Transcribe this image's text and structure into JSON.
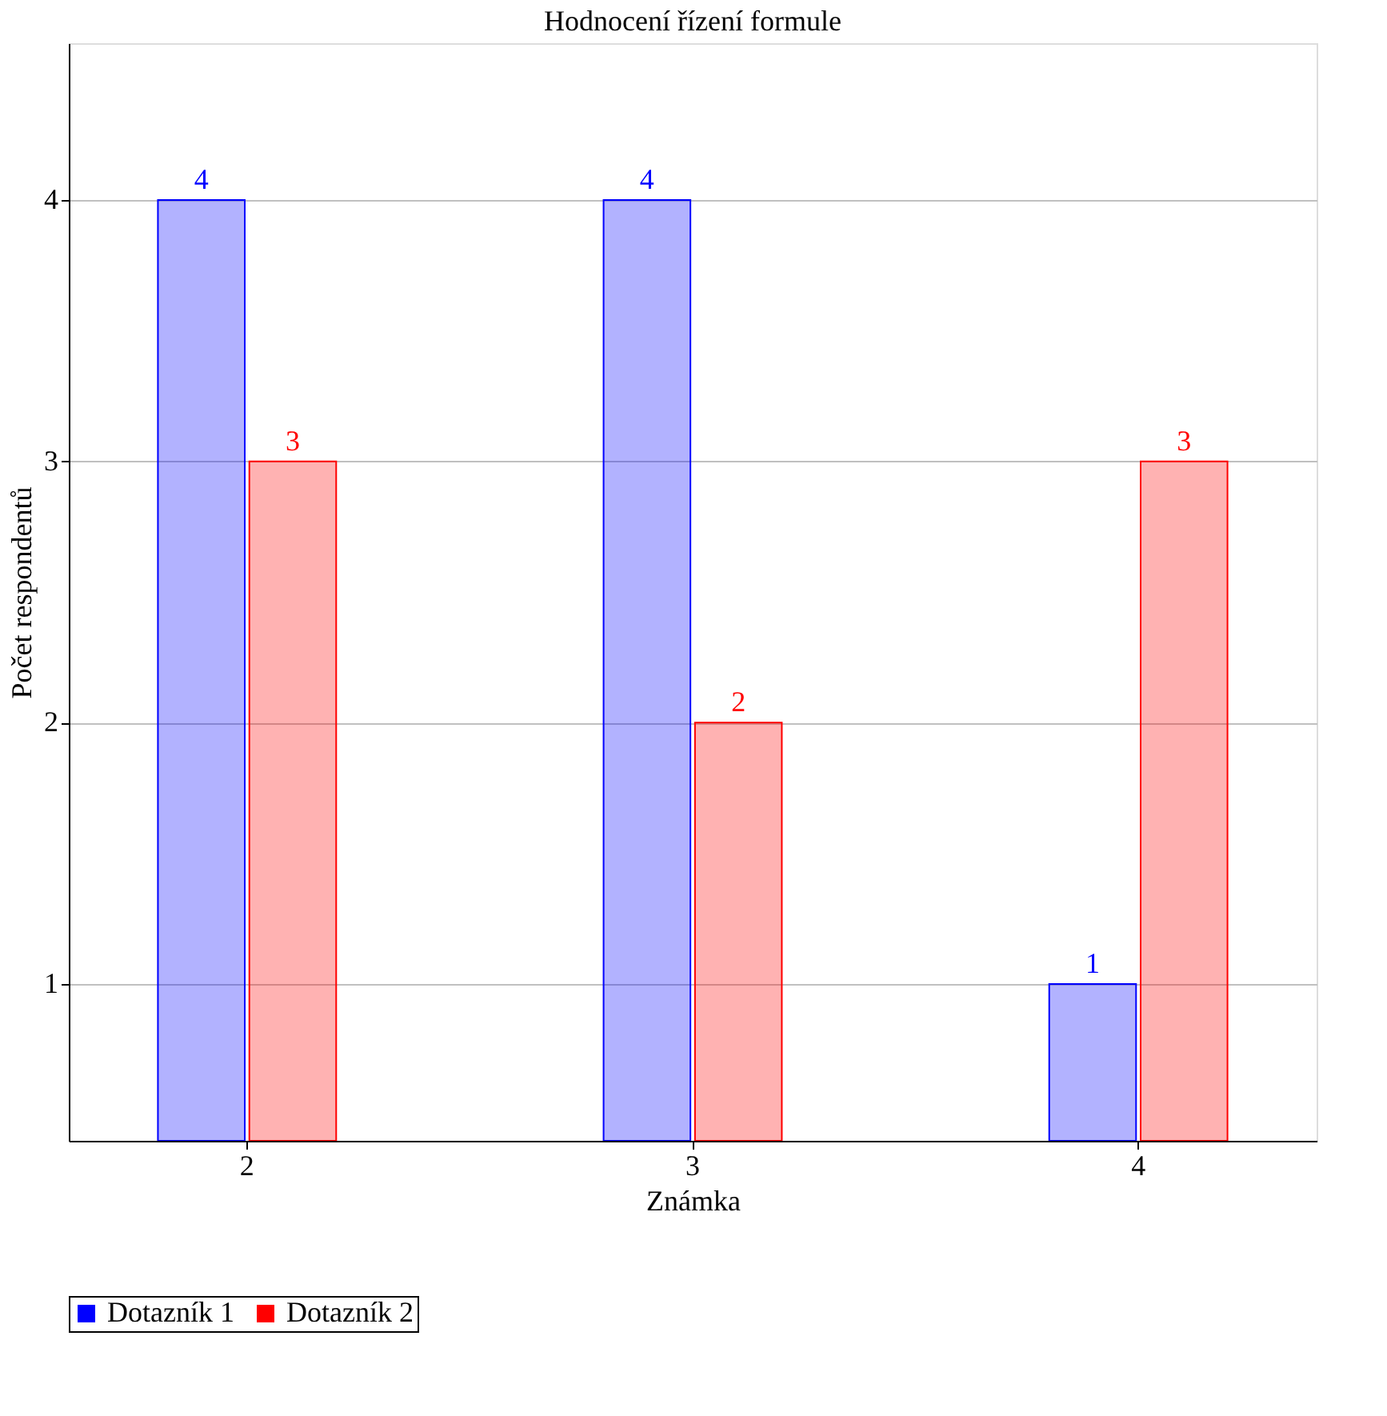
{
  "chart_data": {
    "type": "bar",
    "title": "Hodnocení řízení formule",
    "xlabel": "Známka",
    "ylabel": "Počet respondentů",
    "categories": [
      "2",
      "3",
      "4"
    ],
    "series": [
      {
        "name": "Dotazník 1",
        "color": "#0000ff",
        "values": [
          4,
          4,
          1
        ]
      },
      {
        "name": "Dotazník 2",
        "color": "#ff0000",
        "values": [
          3,
          2,
          3
        ]
      }
    ],
    "ylim": [
      0.4,
      4.6
    ],
    "yticks": [
      1,
      2,
      3,
      4
    ],
    "grid": "y",
    "legend": "bottom",
    "data_labels": true
  }
}
